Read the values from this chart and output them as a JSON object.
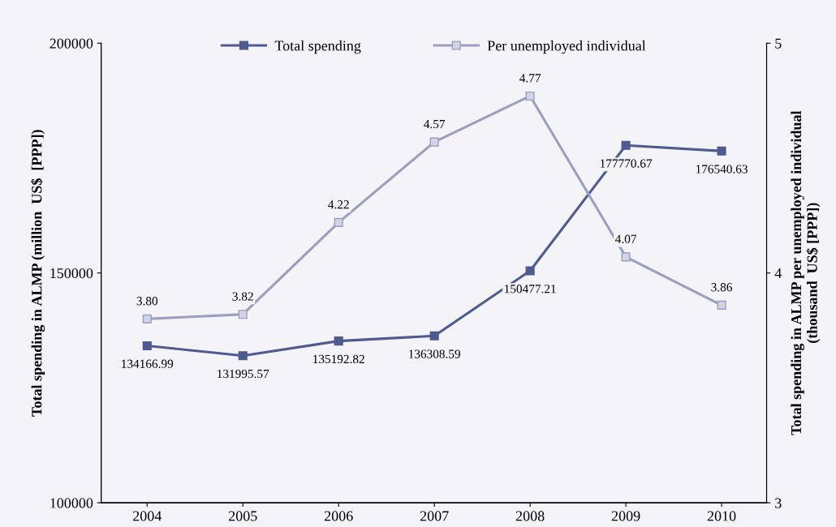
{
  "chart_data": {
    "type": "line",
    "categories": [
      "2004",
      "2005",
      "2006",
      "2007",
      "2008",
      "2009",
      "2010"
    ],
    "ylabel": "Total spending in ALMP (million  US$  [PPP])",
    "y2label": "Total spending in ALMP per unemployed individual\n(thousand  US$ [PPP])",
    "ylim": [
      100000,
      200000
    ],
    "yticks": [
      100000,
      150000,
      200000
    ],
    "y2lim": [
      3,
      5
    ],
    "y2ticks": [
      3,
      4,
      5
    ],
    "series": [
      {
        "name": "Total spending",
        "color": "#4f5a8f",
        "values": [
          134166.99,
          131995.57,
          135192.82,
          136308.59,
          150477.21,
          177770.67,
          176540.63
        ],
        "value_labels": [
          "134166.99",
          "131995.57",
          "135192.82",
          "136308.59",
          "150477.21",
          "177770.67",
          "176540.63"
        ]
      },
      {
        "name": "Per unemployed individual",
        "color": "#9c9ebf",
        "axis": "y2",
        "values": [
          3.8,
          3.82,
          4.22,
          4.57,
          4.77,
          4.07,
          3.86
        ],
        "value_labels": [
          "3.80",
          "3.82",
          "4.22",
          "4.57",
          "4.77",
          "4.07",
          "3.86"
        ]
      }
    ],
    "marker": "square",
    "line_style": "solid",
    "legend": "top",
    "grid": false
  }
}
